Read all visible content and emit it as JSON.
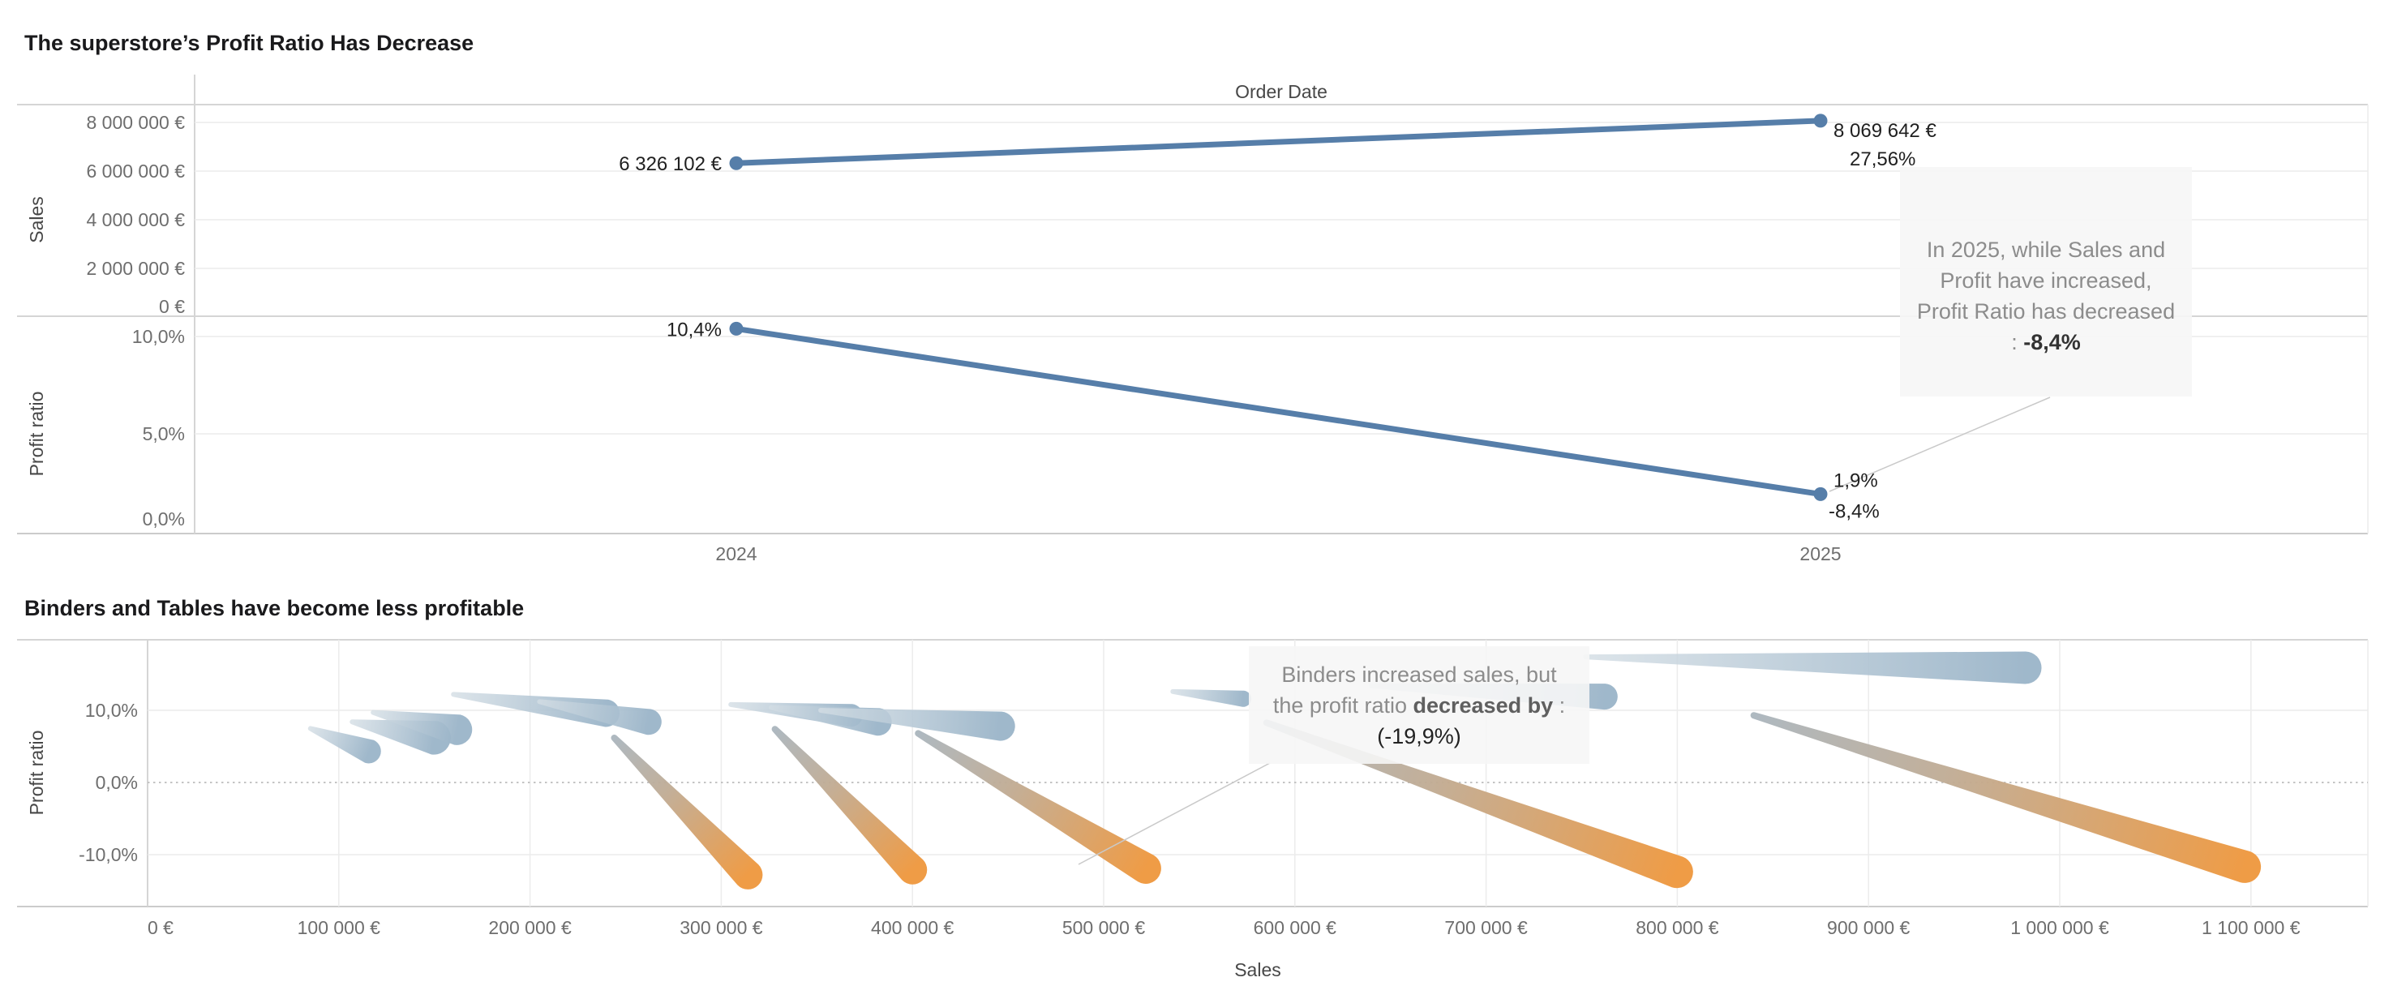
{
  "colors": {
    "line_blue": "#567ea9",
    "comet_blue_tail": "#d3dde4",
    "comet_blue_head": "#9ab4c8",
    "comet_orange_tail": "#aab5bd",
    "comet_orange_mid": "#c0ab93",
    "comet_orange_head": "#ef9c46",
    "grid_light": "#ececec",
    "grid_dotted": "#c4c4c4",
    "axis_rule": "#d5d5d5",
    "axis_rule_dark": "#cbcbcb",
    "tick_text": "#6e6e6e",
    "axis_title_text": "#474747",
    "label_text": "#1f1f1f",
    "connector": "#c9c9c9"
  },
  "top_chart": {
    "title": "The superstore’s Profit Ratio Has Decrease",
    "column_header": "Order Date",
    "years": [
      "2024",
      "2025"
    ],
    "sales_axis": {
      "title": "Sales",
      "ticks": [
        {
          "value": 8000000,
          "label": "8 000 000 €"
        },
        {
          "value": 6000000,
          "label": "6 000 000 €"
        },
        {
          "value": 4000000,
          "label": "4 000 000 €"
        },
        {
          "value": 2000000,
          "label": "2 000 000 €"
        },
        {
          "value": 0,
          "label": "0 €"
        }
      ]
    },
    "profit_axis": {
      "title": "Profit ratio",
      "ticks": [
        {
          "value": 10,
          "label": "10,0%"
        },
        {
          "value": 5,
          "label": "5,0%"
        },
        {
          "value": 0,
          "label": "0,0%"
        }
      ]
    },
    "sales_labels": {
      "start": "6 326 102 €",
      "end": "8 069 642 €",
      "end_secondary": "27,56%"
    },
    "profit_labels": {
      "start": "10,4%",
      "end": "1,9%",
      "end_secondary": "-8,4%"
    },
    "annotation": {
      "line1": "In 2025, while Sales and",
      "line2": "Profit have increased,",
      "line3": "Profit Ratio has decreased",
      "value_prefix": ": ",
      "value": "-8,4%"
    }
  },
  "bottom_chart": {
    "title": "Binders and Tables have become less profitable",
    "x_axis": {
      "title": "Sales",
      "ticks": [
        {
          "value": 0,
          "label": "0 €"
        },
        {
          "value": 100000,
          "label": "100 000 €"
        },
        {
          "value": 200000,
          "label": "200 000 €"
        },
        {
          "value": 300000,
          "label": "300 000 €"
        },
        {
          "value": 400000,
          "label": "400 000 €"
        },
        {
          "value": 500000,
          "label": "500 000 €"
        },
        {
          "value": 600000,
          "label": "600 000 €"
        },
        {
          "value": 700000,
          "label": "700 000 €"
        },
        {
          "value": 800000,
          "label": "800 000 €"
        },
        {
          "value": 900000,
          "label": "900 000 €"
        },
        {
          "value": 1000000,
          "label": "1 000 000 €"
        },
        {
          "value": 1100000,
          "label": "1 100 000 €"
        }
      ]
    },
    "y_axis": {
      "title": "Profit ratio",
      "ticks": [
        {
          "value": 10,
          "label": "10,0%"
        },
        {
          "value": 0,
          "label": "0,0%"
        },
        {
          "value": -10,
          "label": "-10,0%"
        }
      ]
    },
    "annotation": {
      "line1": "Binders increased sales, but",
      "line2_pre": "the profit ratio ",
      "line2_bold": "decreased by",
      "line2_post": " :",
      "value": "(-19,9%)"
    }
  },
  "chart_data": [
    {
      "type": "line",
      "title": "The superstore’s Profit Ratio Has Decrease",
      "x_field": "Order Date",
      "x": [
        "2024",
        "2025"
      ],
      "series": [
        {
          "name": "Sales",
          "unit": "EUR",
          "values": [
            6326102,
            8069642
          ],
          "change_label": "27,56%"
        },
        {
          "name": "Profit ratio",
          "unit": "%",
          "values": [
            10.4,
            1.9
          ],
          "change_label": "-8,4%"
        }
      ],
      "sales_axis_range": [
        0,
        8000000
      ],
      "profit_axis_range": [
        0,
        10
      ],
      "legend": "none",
      "annotation": "In 2025, while Sales and Profit have increased, Profit Ratio has decreased : -8,4%"
    },
    {
      "type": "scatter",
      "mark": "comet",
      "title": "Binders and Tables have become less profitable",
      "xlabel": "Sales",
      "ylabel": "Profit ratio",
      "xlim": [
        0,
        1160000
      ],
      "ylim": [
        -17,
        20
      ],
      "legend": "none",
      "point_format": [
        "sales_start_eur",
        "profit_ratio_start_pct",
        "sales_end_eur",
        "profit_ratio_end_pct",
        "head_size_px"
      ],
      "series": [
        {
          "name": "profit-stable-or-up",
          "color": "blue-gray",
          "points": [
            [
              85000,
              7.5,
              116000,
              4.3,
              15
            ],
            [
              107000,
              8.4,
              150000,
              6.2,
              21
            ],
            [
              118000,
              9.7,
              162000,
              7.3,
              19
            ],
            [
              160000,
              12.2,
              240000,
              9.6,
              17
            ],
            [
              205000,
              11.2,
              262000,
              8.4,
              16
            ],
            [
              305000,
              10.8,
              368000,
              9.3,
              14
            ],
            [
              326000,
              10.4,
              382000,
              8.4,
              17
            ],
            [
              352000,
              10.0,
              446000,
              7.8,
              18
            ],
            [
              536000,
              12.6,
              573000,
              11.6,
              10
            ],
            [
              640000,
              13.4,
              762000,
              11.9,
              16
            ],
            [
              752000,
              17.4,
              982000,
              15.9,
              20
            ]
          ]
        },
        {
          "name": "profit-decreased",
          "color": "orange",
          "points": [
            [
              244000,
              6.2,
              314000,
              -12.8,
              18
            ],
            [
              328000,
              7.4,
              400000,
              -12.1,
              18
            ],
            [
              403000,
              6.8,
              522000,
              -11.9,
              19
            ],
            [
              585000,
              8.3,
              800000,
              -12.4,
              20
            ],
            [
              840000,
              9.3,
              1097000,
              -11.7,
              20
            ]
          ]
        }
      ],
      "annotation": "Binders increased sales, but the profit ratio decreased by : (-19,9%)"
    }
  ]
}
